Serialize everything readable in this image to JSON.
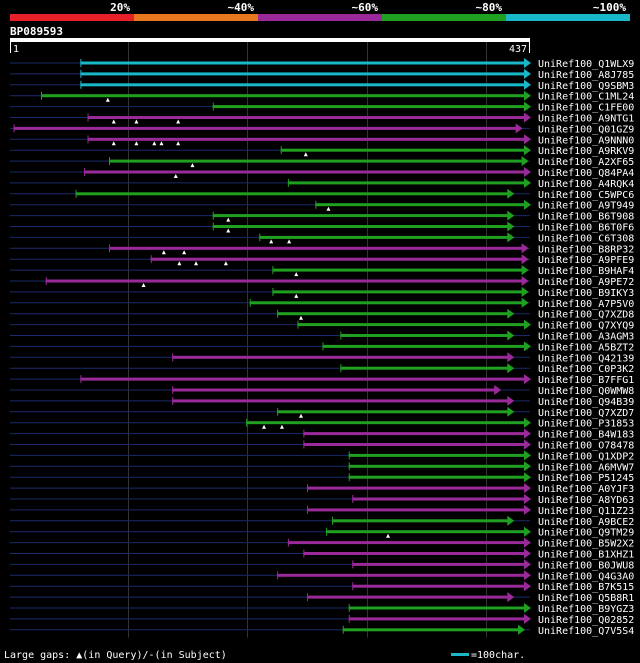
{
  "chart_data": {
    "type": "alignment-overview",
    "query": {
      "name": "BP089593",
      "start": 1,
      "end": 437
    },
    "identity_legend": [
      {
        "label": "20%",
        "color": "#e8202a"
      },
      {
        "label": "~40%",
        "color": "#e87820"
      },
      {
        "label": "~60%",
        "color": "#9a2a9a"
      },
      {
        "label": "~80%",
        "color": "#20a020"
      },
      {
        "label": "~100%",
        "color": "#18b8c8"
      }
    ],
    "hits": [
      {
        "name": "UniRef100_Q1WLX9",
        "start": 60,
        "end": 437,
        "color": "cyan",
        "gaps": []
      },
      {
        "name": "UniRef100_A8J785",
        "start": 60,
        "end": 437,
        "color": "cyan",
        "gaps": []
      },
      {
        "name": "UniRef100_Q9SBM3",
        "start": 60,
        "end": 437,
        "color": "cyan",
        "gaps": []
      },
      {
        "name": "UniRef100_C1ML24",
        "start": 27,
        "end": 437,
        "color": "green",
        "gaps": [
          83
        ]
      },
      {
        "name": "UniRef100_C1FE00",
        "start": 171,
        "end": 437,
        "color": "green",
        "gaps": []
      },
      {
        "name": "UniRef100_A9NTG1",
        "start": 66,
        "end": 437,
        "color": "purple",
        "gaps": [
          88,
          107,
          142
        ]
      },
      {
        "name": "UniRef100_Q01GZ9",
        "start": 4,
        "end": 430,
        "color": "purple",
        "gaps": []
      },
      {
        "name": "UniRef100_A9NNN0",
        "start": 66,
        "end": 437,
        "color": "purple",
        "gaps": [
          88,
          107,
          122,
          128,
          142
        ]
      },
      {
        "name": "UniRef100_A9RKV9",
        "start": 228,
        "end": 437,
        "color": "green",
        "gaps": [
          249
        ]
      },
      {
        "name": "UniRef100_A2XF65",
        "start": 84,
        "end": 435,
        "color": "green",
        "gaps": [
          154
        ]
      },
      {
        "name": "UniRef100_Q84PA4",
        "start": 63,
        "end": 437,
        "color": "purple",
        "gaps": [
          140
        ]
      },
      {
        "name": "UniRef100_A4RQK4",
        "start": 234,
        "end": 437,
        "color": "green",
        "gaps": []
      },
      {
        "name": "UniRef100_C5WPC6",
        "start": 56,
        "end": 423,
        "color": "green",
        "gaps": []
      },
      {
        "name": "UniRef100_A9T949",
        "start": 257,
        "end": 437,
        "color": "green",
        "gaps": [
          268
        ]
      },
      {
        "name": "UniRef100_B6T908",
        "start": 171,
        "end": 423,
        "color": "green",
        "gaps": [
          184
        ]
      },
      {
        "name": "UniRef100_B6T0F6",
        "start": 171,
        "end": 423,
        "color": "green",
        "gaps": [
          184
        ]
      },
      {
        "name": "UniRef100_C6T308",
        "start": 210,
        "end": 423,
        "color": "green",
        "gaps": [
          220,
          235
        ]
      },
      {
        "name": "UniRef100_B8RP32",
        "start": 84,
        "end": 435,
        "color": "purple",
        "gaps": [
          130,
          147
        ]
      },
      {
        "name": "UniRef100_A9PFE9",
        "start": 119,
        "end": 435,
        "color": "purple",
        "gaps": [
          143,
          157,
          182
        ]
      },
      {
        "name": "UniRef100_B9HAF4",
        "start": 221,
        "end": 435,
        "color": "green",
        "gaps": [
          241
        ]
      },
      {
        "name": "UniRef100_A9PE72",
        "start": 31,
        "end": 435,
        "color": "purple",
        "gaps": [
          113
        ]
      },
      {
        "name": "UniRef100_B9IKY3",
        "start": 221,
        "end": 435,
        "color": "green",
        "gaps": [
          241
        ]
      },
      {
        "name": "UniRef100_A7P5V0",
        "start": 202,
        "end": 435,
        "color": "green",
        "gaps": []
      },
      {
        "name": "UniRef100_Q7XZD8",
        "start": 225,
        "end": 423,
        "color": "green",
        "gaps": [
          245
        ]
      },
      {
        "name": "UniRef100_Q7XYQ9",
        "start": 242,
        "end": 437,
        "color": "green",
        "gaps": []
      },
      {
        "name": "UniRef100_A3AGM3",
        "start": 278,
        "end": 423,
        "color": "green",
        "gaps": []
      },
      {
        "name": "UniRef100_A5BZT2",
        "start": 263,
        "end": 437,
        "color": "green",
        "gaps": []
      },
      {
        "name": "UniRef100_Q42139",
        "start": 137,
        "end": 423,
        "color": "purple",
        "gaps": []
      },
      {
        "name": "UniRef100_C0P3K2",
        "start": 278,
        "end": 423,
        "color": "green",
        "gaps": []
      },
      {
        "name": "UniRef100_B7FFG1",
        "start": 60,
        "end": 437,
        "color": "purple",
        "gaps": []
      },
      {
        "name": "UniRef100_Q0WMW8",
        "start": 137,
        "end": 412,
        "color": "purple",
        "gaps": []
      },
      {
        "name": "UniRef100_Q94B39",
        "start": 137,
        "end": 423,
        "color": "purple",
        "gaps": []
      },
      {
        "name": "UniRef100_Q7XZD7",
        "start": 225,
        "end": 423,
        "color": "green",
        "gaps": [
          245
        ]
      },
      {
        "name": "UniRef100_P31853",
        "start": 199,
        "end": 437,
        "color": "green",
        "gaps": [
          214,
          229
        ]
      },
      {
        "name": "UniRef100_B4W183",
        "start": 247,
        "end": 437,
        "color": "purple",
        "gaps": []
      },
      {
        "name": "UniRef100_O78478",
        "start": 247,
        "end": 437,
        "color": "purple",
        "gaps": []
      },
      {
        "name": "UniRef100_Q1XDP2",
        "start": 285,
        "end": 437,
        "color": "green",
        "gaps": []
      },
      {
        "name": "UniRef100_A6MVW7",
        "start": 285,
        "end": 437,
        "color": "green",
        "gaps": []
      },
      {
        "name": "UniRef100_P51245",
        "start": 285,
        "end": 437,
        "color": "green",
        "gaps": []
      },
      {
        "name": "UniRef100_A0YJF3",
        "start": 250,
        "end": 437,
        "color": "purple",
        "gaps": []
      },
      {
        "name": "UniRef100_A8YD63",
        "start": 288,
        "end": 437,
        "color": "purple",
        "gaps": []
      },
      {
        "name": "UniRef100_Q11Z23",
        "start": 250,
        "end": 437,
        "color": "purple",
        "gaps": []
      },
      {
        "name": "UniRef100_A9BCE2",
        "start": 271,
        "end": 423,
        "color": "green",
        "gaps": []
      },
      {
        "name": "UniRef100_Q9TM29",
        "start": 266,
        "end": 437,
        "color": "green",
        "gaps": [
          318
        ]
      },
      {
        "name": "UniRef100_B5W2X2",
        "start": 234,
        "end": 437,
        "color": "purple",
        "gaps": []
      },
      {
        "name": "UniRef100_B1XHZ1",
        "start": 247,
        "end": 437,
        "color": "purple",
        "gaps": []
      },
      {
        "name": "UniRef100_B0JWU8",
        "start": 288,
        "end": 437,
        "color": "purple",
        "gaps": []
      },
      {
        "name": "UniRef100_Q4G3A0",
        "start": 225,
        "end": 437,
        "color": "purple",
        "gaps": []
      },
      {
        "name": "UniRef100_B7K515",
        "start": 288,
        "end": 437,
        "color": "purple",
        "gaps": []
      },
      {
        "name": "UniRef100_Q5B8R1",
        "start": 250,
        "end": 423,
        "color": "purple",
        "gaps": []
      },
      {
        "name": "UniRef100_B9YGZ3",
        "start": 285,
        "end": 437,
        "color": "green",
        "gaps": []
      },
      {
        "name": "UniRef100_Q02852",
        "start": 285,
        "end": 437,
        "color": "purple",
        "gaps": []
      },
      {
        "name": "UniRef100_Q7V5S4",
        "start": 280,
        "end": 432,
        "color": "green",
        "gaps": []
      }
    ],
    "footer": {
      "gaps_label": "Large gaps: ",
      "gaps_marker": "▲",
      "gaps_in_query": "(in Query)/",
      "gaps_dash": "-",
      "gaps_in_subject": "(in Subject)",
      "scale_label": "=100char.",
      "scale_chars": 100
    },
    "colors": {
      "cyan": "#18b8c8",
      "green": "#20a020",
      "purple": "#9a2a9a",
      "backbone": "#1a2a6a",
      "grid": "#333333"
    }
  }
}
